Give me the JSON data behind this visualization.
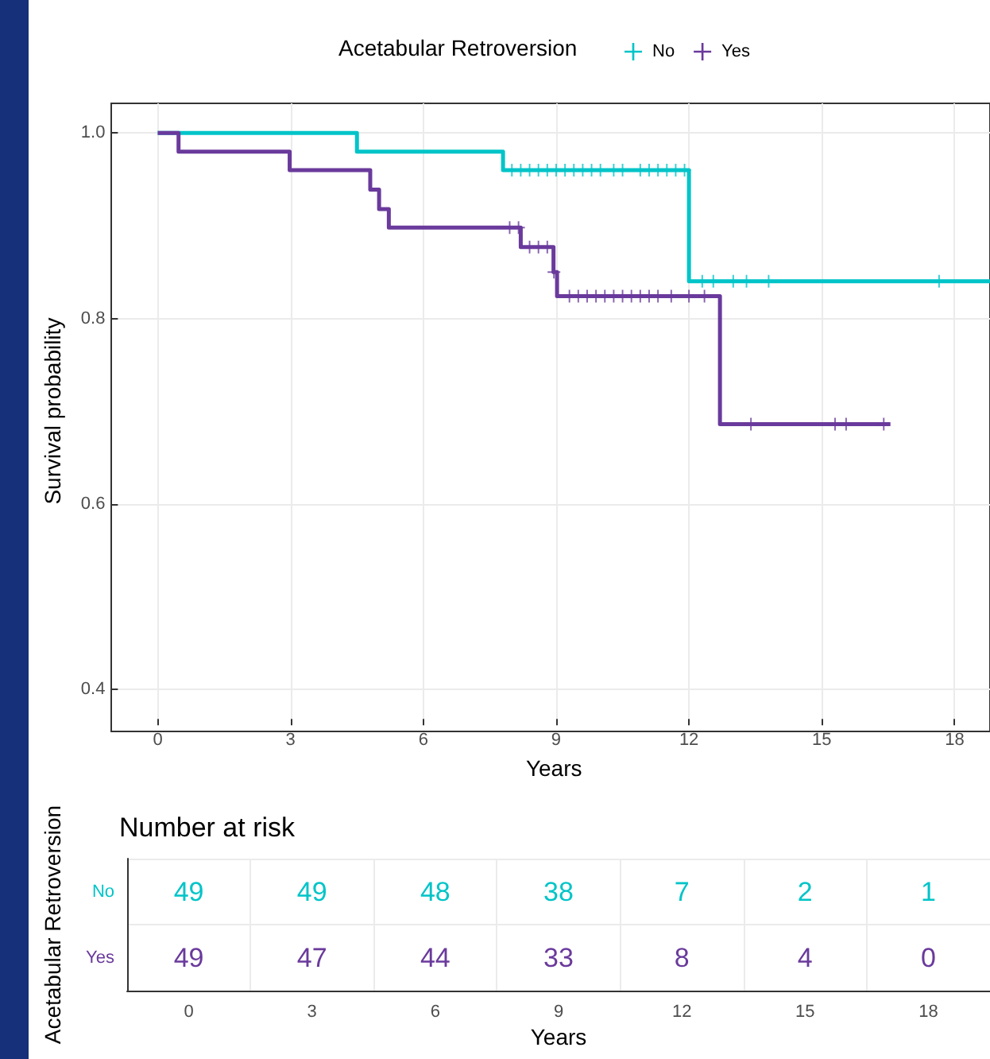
{
  "chart_data": [
    {
      "type": "step",
      "xlabel": "Years",
      "ylabel": "Survival probability",
      "legend_title": "Acetabular Retroversion",
      "legend": "top",
      "grid": true,
      "line_style": "solid",
      "marker": "none",
      "xlim": [
        -0.9,
        18.8
      ],
      "xticks": [
        0,
        3,
        6,
        9,
        12,
        15,
        18
      ],
      "ylim": [
        0.368,
        1.032
      ],
      "yticks": [
        0.4,
        0.6,
        0.8,
        {
          "value": 1,
          "label": "1.0"
        }
      ],
      "series": [
        {
          "name": "No",
          "color": "#00c4c8",
          "x": [
            0,
            4.5,
            7.8,
            12.0,
            18.8
          ],
          "values": [
            1,
            0.98,
            0.96,
            0.84,
            0.84
          ]
        },
        {
          "name": "Yes",
          "color": "#6a3a9c",
          "x": [
            0,
            0.47,
            2.98,
            4.8,
            5.0,
            5.22,
            8.2,
            8.94,
            9.02,
            12.7,
            16.55
          ],
          "values": [
            1,
            0.98,
            0.96,
            0.939,
            0.918,
            0.898,
            0.877,
            0.85,
            0.824,
            0.686,
            0.686
          ]
        },
        {
          "type": "scatter",
          "marker": "cross",
          "color": "#00c4c8",
          "x": [
            8.0,
            8.2,
            8.4,
            8.6,
            8.8,
            9.0,
            9.2,
            9.4,
            9.6,
            9.8,
            10.0,
            10.3,
            10.5,
            10.9,
            11.1,
            11.3,
            11.5,
            11.7,
            11.9,
            12.3,
            12.55,
            13.0,
            13.3,
            13.8,
            17.65
          ],
          "values": [
            0.96,
            0.96,
            0.96,
            0.96,
            0.96,
            0.96,
            0.96,
            0.96,
            0.96,
            0.96,
            0.96,
            0.96,
            0.96,
            0.96,
            0.96,
            0.96,
            0.96,
            0.96,
            0.96,
            0.84,
            0.84,
            0.84,
            0.84,
            0.84,
            0.84
          ]
        },
        {
          "type": "scatter",
          "marker": "cross",
          "color": "#6a3a9c",
          "x": [
            7.95,
            8.15,
            8.4,
            8.6,
            8.8,
            8.95,
            9.3,
            9.5,
            9.7,
            9.9,
            10.1,
            10.3,
            10.5,
            10.7,
            10.9,
            11.1,
            11.3,
            11.6,
            12.0,
            12.35,
            13.4,
            15.3,
            15.55,
            16.4
          ],
          "values": [
            0.898,
            0.898,
            0.877,
            0.877,
            0.877,
            0.85,
            0.824,
            0.824,
            0.824,
            0.824,
            0.824,
            0.824,
            0.824,
            0.824,
            0.824,
            0.824,
            0.824,
            0.824,
            0.824,
            0.824,
            0.686,
            0.686,
            0.686,
            0.686
          ]
        }
      ]
    },
    {
      "type": "heatmap",
      "title": "Number at risk",
      "xlabel": "Years",
      "ylabel": "Acetabular Retroversion",
      "grid": true,
      "data_labels": true,
      "categories": [
        "0",
        "3",
        "6",
        "9",
        "12",
        "15",
        "18"
      ],
      "y_categories": [
        "No",
        "Yes"
      ],
      "colors": [
        "#00c4c8",
        "#6a3a9c"
      ],
      "cells": [
        [
          49,
          49,
          48,
          38,
          7,
          2,
          1
        ],
        [
          49,
          47,
          44,
          33,
          8,
          4,
          0
        ]
      ]
    }
  ]
}
